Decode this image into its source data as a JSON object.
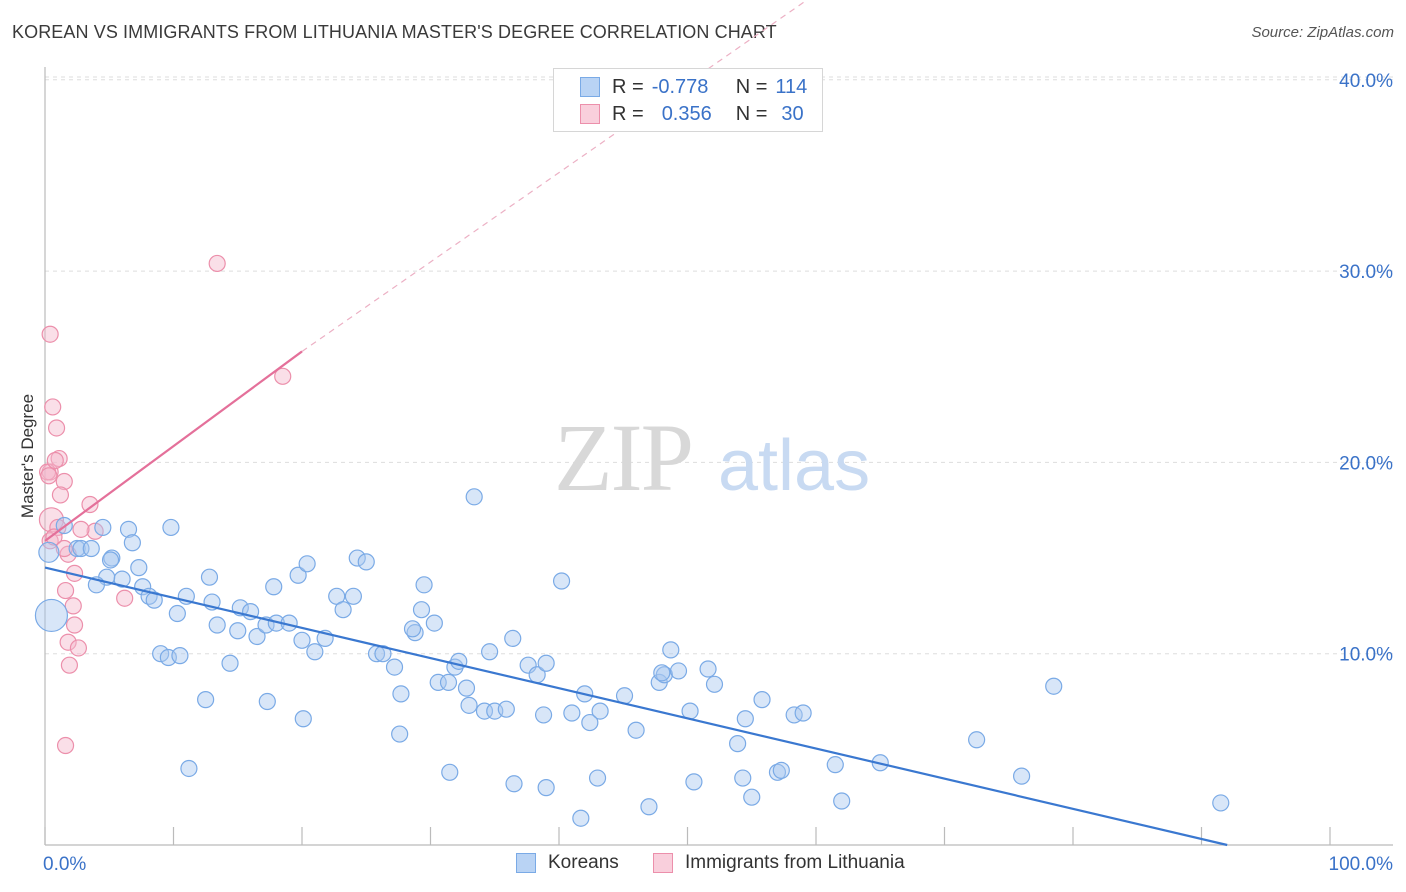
{
  "header": {
    "title": "KOREAN VS IMMIGRANTS FROM LITHUANIA MASTER'S DEGREE CORRELATION CHART",
    "source": "Source: ZipAtlas.com"
  },
  "watermark": {
    "zip": "ZIP",
    "atlas": "atlas"
  },
  "legend": {
    "rows": [
      {
        "r_label": "R =",
        "r_value": "-0.778",
        "n_label": "N =",
        "n_value": "114",
        "color": "#a9c8f0"
      },
      {
        "r_label": "R =",
        "r_value": "0.356",
        "n_label": "N =",
        "n_value": "30",
        "color": "#f5b8cb"
      }
    ]
  },
  "bottom_legend": {
    "items": [
      {
        "label": "Koreans",
        "color": "#a9c8f0"
      },
      {
        "label": "Immigrants from Lithuania",
        "color": "#f5b8cb"
      }
    ]
  },
  "colors": {
    "blue_fill": "#a9c8f0",
    "blue_stroke": "#7aaae6",
    "blue_line": "#3a78d0",
    "pink_fill": "#f5b8cb",
    "pink_stroke": "#ec8fab",
    "pink_line": "#e4709a",
    "tick_label": "#3a72c8",
    "grid": "#dddddd"
  },
  "chart_data": {
    "type": "scatter",
    "title": "KOREAN VS IMMIGRANTS FROM LITHUANIA MASTER'S DEGREE CORRELATION CHART",
    "xlabel": "",
    "ylabel": "Master's Degree",
    "xlim": [
      0,
      100
    ],
    "ylim": [
      0,
      41.5
    ],
    "x_tick_labels": [
      "0.0%",
      "100.0%"
    ],
    "y_ticks": [
      10,
      20,
      30,
      40
    ],
    "y_tick_labels": [
      "10.0%",
      "20.0%",
      "30.0%",
      "40.0%"
    ],
    "grid": true,
    "legend_position": "top-center",
    "series": [
      {
        "name": "Koreans",
        "r": -0.778,
        "n": 114,
        "trend": {
          "x": [
            0,
            92
          ],
          "y": [
            14.5,
            0
          ]
        },
        "points": [
          [
            0.5,
            12.0,
            16
          ],
          [
            0.3,
            15.3,
            10
          ],
          [
            1.5,
            16.7,
            8
          ],
          [
            2.5,
            15.5,
            8
          ],
          [
            4.5,
            16.6,
            8
          ],
          [
            5.2,
            15.0,
            8
          ],
          [
            2.8,
            15.5,
            8
          ],
          [
            3.6,
            15.5,
            8
          ],
          [
            6.5,
            16.5,
            8
          ],
          [
            6.8,
            15.8,
            8
          ],
          [
            7.3,
            14.5,
            8
          ],
          [
            6.0,
            13.9,
            8
          ],
          [
            5.1,
            14.9,
            8
          ],
          [
            4.8,
            14.0,
            8
          ],
          [
            4.0,
            13.6,
            8
          ],
          [
            7.6,
            13.5,
            8
          ],
          [
            8.1,
            13.0,
            8
          ],
          [
            8.5,
            12.8,
            8
          ],
          [
            9.8,
            16.6,
            8
          ],
          [
            10.3,
            12.1,
            8
          ],
          [
            11.0,
            13.0,
            8
          ],
          [
            12.8,
            14.0,
            8
          ],
          [
            13.0,
            12.7,
            8
          ],
          [
            13.4,
            11.5,
            8
          ],
          [
            15.0,
            11.2,
            8
          ],
          [
            15.2,
            12.4,
            8
          ],
          [
            16.0,
            12.2,
            8
          ],
          [
            16.5,
            10.9,
            8
          ],
          [
            17.2,
            11.5,
            8
          ],
          [
            17.8,
            13.5,
            8
          ],
          [
            18.0,
            11.6,
            8
          ],
          [
            19.0,
            11.6,
            8
          ],
          [
            19.7,
            14.1,
            8
          ],
          [
            20.4,
            14.7,
            8
          ],
          [
            20.0,
            10.7,
            8
          ],
          [
            21.0,
            10.1,
            8
          ],
          [
            21.8,
            10.8,
            8
          ],
          [
            22.7,
            13.0,
            8
          ],
          [
            23.2,
            12.3,
            8
          ],
          [
            24.0,
            13.0,
            8
          ],
          [
            24.3,
            15.0,
            8
          ],
          [
            25.0,
            14.8,
            8
          ],
          [
            25.8,
            10.0,
            8
          ],
          [
            26.3,
            10.0,
            8
          ],
          [
            27.2,
            9.3,
            8
          ],
          [
            27.7,
            7.9,
            8
          ],
          [
            28.8,
            11.1,
            8
          ],
          [
            29.3,
            12.3,
            8
          ],
          [
            29.5,
            13.6,
            8
          ],
          [
            30.3,
            11.6,
            8
          ],
          [
            30.6,
            8.5,
            8
          ],
          [
            31.4,
            8.5,
            8
          ],
          [
            31.9,
            9.3,
            8
          ],
          [
            32.2,
            9.6,
            8
          ],
          [
            32.8,
            8.2,
            8
          ],
          [
            33.4,
            18.2,
            8
          ],
          [
            33.0,
            7.3,
            8
          ],
          [
            34.2,
            7.0,
            8
          ],
          [
            35.0,
            7.0,
            8
          ],
          [
            35.9,
            7.1,
            8
          ],
          [
            36.4,
            10.8,
            8
          ],
          [
            37.6,
            9.4,
            8
          ],
          [
            38.3,
            8.9,
            8
          ],
          [
            39.0,
            9.5,
            8
          ],
          [
            38.8,
            6.8,
            8
          ],
          [
            40.2,
            13.8,
            8
          ],
          [
            41.0,
            6.9,
            8
          ],
          [
            42.0,
            7.9,
            8
          ],
          [
            42.4,
            6.4,
            8
          ],
          [
            45.1,
            7.8,
            8
          ],
          [
            46.0,
            6.0,
            8
          ],
          [
            47.8,
            8.5,
            8
          ],
          [
            48.2,
            8.9,
            8
          ],
          [
            48.7,
            10.2,
            8
          ],
          [
            49.3,
            9.1,
            8
          ],
          [
            50.2,
            7.0,
            8
          ],
          [
            51.6,
            9.2,
            8
          ],
          [
            52.1,
            8.4,
            8
          ],
          [
            53.9,
            5.3,
            8
          ],
          [
            54.3,
            3.5,
            8
          ],
          [
            54.5,
            6.6,
            8
          ],
          [
            55.8,
            7.6,
            8
          ],
          [
            57.0,
            3.8,
            8
          ],
          [
            57.3,
            3.9,
            8
          ],
          [
            58.3,
            6.8,
            8
          ],
          [
            59.0,
            6.9,
            8
          ],
          [
            61.5,
            4.2,
            8
          ],
          [
            65.0,
            4.3,
            8
          ],
          [
            72.5,
            5.5,
            8
          ],
          [
            76.0,
            3.6,
            8
          ],
          [
            78.5,
            8.3,
            8
          ],
          [
            91.5,
            2.2,
            8
          ],
          [
            41.7,
            1.4,
            8
          ],
          [
            31.5,
            3.8,
            8
          ],
          [
            36.5,
            3.2,
            8
          ],
          [
            39.0,
            3.0,
            8
          ],
          [
            47.0,
            2.0,
            8
          ],
          [
            50.5,
            3.3,
            8
          ],
          [
            55.0,
            2.5,
            8
          ],
          [
            62.0,
            2.3,
            8
          ],
          [
            48.0,
            9.0,
            8
          ],
          [
            43.2,
            7.0,
            8
          ],
          [
            34.6,
            10.1,
            8
          ],
          [
            28.6,
            11.3,
            8
          ],
          [
            27.6,
            5.8,
            8
          ],
          [
            20.1,
            6.6,
            8
          ],
          [
            11.2,
            4.0,
            8
          ],
          [
            9.0,
            10.0,
            8
          ],
          [
            9.6,
            9.8,
            8
          ],
          [
            10.5,
            9.9,
            8
          ],
          [
            14.4,
            9.5,
            8
          ],
          [
            12.5,
            7.6,
            8
          ],
          [
            17.3,
            7.5,
            8
          ],
          [
            43.0,
            3.5,
            8
          ]
        ]
      },
      {
        "name": "Immigrants from Lithuania",
        "r": 0.356,
        "n": 30,
        "trend": {
          "x": [
            0,
            20
          ],
          "y": [
            15.9,
            25.8
          ],
          "dashed_to": {
            "x": 60,
            "y": 44.5
          }
        },
        "points": [
          [
            0.4,
            26.7,
            8
          ],
          [
            0.4,
            19.5,
            8
          ],
          [
            0.2,
            19.5,
            8
          ],
          [
            0.6,
            22.9,
            8
          ],
          [
            0.9,
            21.8,
            8
          ],
          [
            1.1,
            20.2,
            8
          ],
          [
            0.8,
            20.1,
            8
          ],
          [
            1.5,
            19.0,
            8
          ],
          [
            1.2,
            18.3,
            8
          ],
          [
            0.5,
            17.0,
            12
          ],
          [
            0.4,
            15.9,
            8
          ],
          [
            3.5,
            17.8,
            8
          ],
          [
            3.9,
            16.4,
            8
          ],
          [
            1.8,
            15.2,
            8
          ],
          [
            2.3,
            14.2,
            8
          ],
          [
            1.6,
            13.3,
            8
          ],
          [
            2.2,
            12.5,
            8
          ],
          [
            2.3,
            11.5,
            8
          ],
          [
            1.8,
            10.6,
            8
          ],
          [
            2.6,
            10.3,
            8
          ],
          [
            1.9,
            9.4,
            8
          ],
          [
            1.6,
            5.2,
            8
          ],
          [
            13.4,
            30.4,
            8
          ],
          [
            18.5,
            24.5,
            8
          ],
          [
            6.2,
            12.9,
            8
          ],
          [
            1.0,
            16.6,
            8
          ],
          [
            0.7,
            16.1,
            8
          ],
          [
            1.5,
            15.5,
            8
          ],
          [
            2.8,
            16.5,
            8
          ],
          [
            0.3,
            19.3,
            8
          ]
        ]
      }
    ]
  }
}
